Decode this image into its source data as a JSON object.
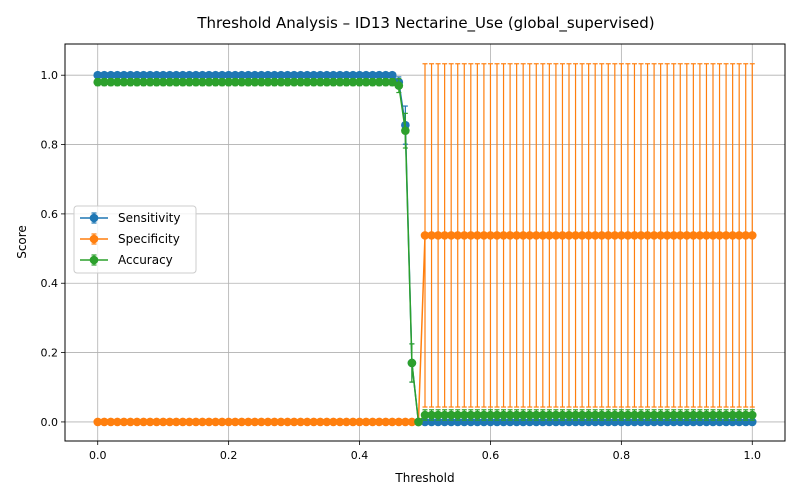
{
  "chart_data": {
    "type": "line",
    "title": "Threshold Analysis – ID13 Nectarine_Use (global_supervised)",
    "xlabel": "Threshold",
    "ylabel": "Score",
    "xlim": [
      -0.05,
      1.05
    ],
    "ylim": [
      -0.055,
      1.09
    ],
    "x_ticks": [
      0.0,
      0.2,
      0.4,
      0.6,
      0.8,
      1.0
    ],
    "x_tick_labels": [
      "0.0",
      "0.2",
      "0.4",
      "0.6",
      "0.8",
      "1.0"
    ],
    "y_ticks": [
      0.0,
      0.2,
      0.4,
      0.6,
      0.8,
      1.0
    ],
    "y_tick_labels": [
      "0.0",
      "0.2",
      "0.4",
      "0.6",
      "0.8",
      "1.0"
    ],
    "grid": true,
    "legend_position": "center-left",
    "x_threshold_step": 0.01,
    "series": [
      {
        "name": "Sensitivity",
        "color": "#1f77b4",
        "segments": [
          {
            "x_from": 0.0,
            "x_to": 0.45,
            "value": 1.0,
            "error": 0.0
          },
          {
            "x": 0.46,
            "value": 0.98,
            "error": 0.015
          },
          {
            "x": 0.47,
            "value": 0.856,
            "error": 0.055
          },
          {
            "x": 0.48,
            "value": 0.17,
            "error": 0.055
          },
          {
            "x": 0.49,
            "value": 0.0,
            "error": 0.0
          },
          {
            "x_from": 0.5,
            "x_to": 1.0,
            "value": 0.0,
            "error": 0.0
          }
        ]
      },
      {
        "name": "Specificity",
        "color": "#ff7f0e",
        "segments": [
          {
            "x_from": 0.0,
            "x_to": 0.49,
            "value": 0.0,
            "error": 0.0
          },
          {
            "x_from": 0.5,
            "x_to": 1.0,
            "value": 0.538,
            "error": 0.495
          }
        ]
      },
      {
        "name": "Accuracy",
        "color": "#2ca02c",
        "segments": [
          {
            "x_from": 0.0,
            "x_to": 0.45,
            "value": 0.98,
            "error": 0.01
          },
          {
            "x": 0.46,
            "value": 0.97,
            "error": 0.02
          },
          {
            "x": 0.47,
            "value": 0.84,
            "error": 0.05
          },
          {
            "x": 0.48,
            "value": 0.17,
            "error": 0.055
          },
          {
            "x": 0.49,
            "value": 0.0,
            "error": 0.0
          },
          {
            "x_from": 0.5,
            "x_to": 1.0,
            "value": 0.02,
            "error": 0.015
          }
        ]
      }
    ]
  }
}
